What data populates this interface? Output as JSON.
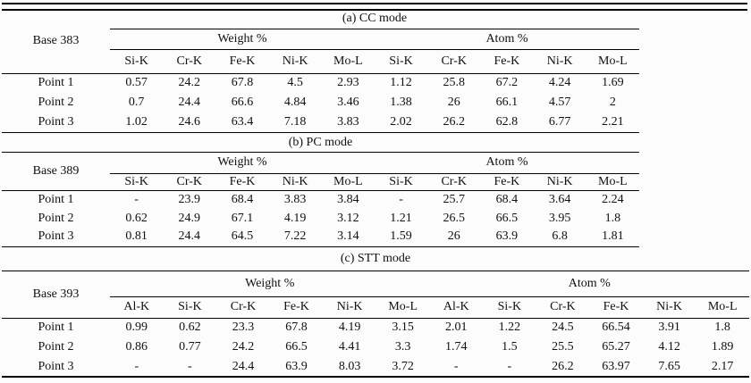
{
  "page": {
    "background": "#fcfcfc",
    "rule_color": "#000000",
    "text_color": "#111111"
  },
  "table": {
    "sections": [
      {
        "id": "a",
        "title": "(a) CC mode",
        "base_label": "Base 383",
        "base_spans_title_row": true,
        "group_headers": [
          "Weight %",
          "Atom %"
        ],
        "element_columns": [
          "Si-K",
          "Cr-K",
          "Fe-K",
          "Ni-K",
          "Mo-L",
          "Si-K",
          "Cr-K",
          "Fe-K",
          "Ni-K",
          "Mo-L"
        ],
        "rows": [
          {
            "label": "Point 1",
            "values": [
              "0.57",
              "24.2",
              "67.8",
              "4.5",
              "2.93",
              "1.12",
              "25.8",
              "67.2",
              "4.24",
              "1.69"
            ]
          },
          {
            "label": "Point 2",
            "values": [
              "0.7",
              "24.4",
              "66.6",
              "4.84",
              "3.46",
              "1.38",
              "26",
              "66.1",
              "4.57",
              "2"
            ]
          },
          {
            "label": "Point 3",
            "values": [
              "1.02",
              "24.6",
              "63.4",
              "7.18",
              "3.83",
              "2.02",
              "26.2",
              "62.8",
              "6.77",
              "2.21"
            ]
          }
        ]
      },
      {
        "id": "b",
        "title": "(b) PC mode",
        "base_label": "Base 389",
        "base_spans_title_row": false,
        "group_headers": [
          "Weight %",
          "Atom %"
        ],
        "element_columns": [
          "Si-K",
          "Cr-K",
          "Fe-K",
          "Ni-K",
          "Mo-L",
          "Si-K",
          "Cr-K",
          "Fe-K",
          "Ni-K",
          "Mo-L"
        ],
        "rows": [
          {
            "label": "Point 1",
            "values": [
              "-",
              "23.9",
              "68.4",
              "3.83",
              "3.84",
              "-",
              "25.7",
              "68.4",
              "3.64",
              "2.24"
            ]
          },
          {
            "label": "Point 2",
            "values": [
              "0.62",
              "24.9",
              "67.1",
              "4.19",
              "3.12",
              "1.21",
              "26.5",
              "66.5",
              "3.95",
              "1.8"
            ]
          },
          {
            "label": "Point 3",
            "values": [
              "0.81",
              "24.4",
              "64.5",
              "7.22",
              "3.14",
              "1.59",
              "26",
              "63.9",
              "6.8",
              "1.81"
            ]
          }
        ]
      },
      {
        "id": "c",
        "title": "(c) STT mode",
        "base_label": "Base 393",
        "base_spans_title_row": false,
        "group_headers": [
          "Weight %",
          "Atom %"
        ],
        "element_columns": [
          "Al-K",
          "Si-K",
          "Cr-K",
          "Fe-K",
          "Ni-K",
          "Mo-L",
          "Al-K",
          "Si-K",
          "Cr-K",
          "Fe-K",
          "Ni-K",
          "Mo-L"
        ],
        "rows": [
          {
            "label": "Point 1",
            "values": [
              "0.99",
              "0.62",
              "23.3",
              "67.8",
              "4.19",
              "3.15",
              "2.01",
              "1.22",
              "24.5",
              "66.54",
              "3.91",
              "1.8"
            ]
          },
          {
            "label": "Point 2",
            "values": [
              "0.86",
              "0.77",
              "24.2",
              "66.5",
              "4.41",
              "3.3",
              "1.74",
              "1.5",
              "25.5",
              "65.27",
              "4.12",
              "1.89"
            ]
          },
          {
            "label": "Point 3",
            "values": [
              "-",
              "-",
              "24.4",
              "63.9",
              "8.03",
              "3.72",
              "-",
              "-",
              "26.2",
              "63.97",
              "7.65",
              "2.17"
            ]
          }
        ]
      }
    ]
  }
}
